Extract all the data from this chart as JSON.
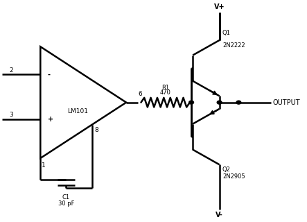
{
  "background_color": "#ffffff",
  "line_color": "#000000",
  "line_width": 1.8,
  "fig_width": 4.43,
  "fig_height": 3.2,
  "dpi": 100,
  "labels": {
    "pin2": "2",
    "pin3": "3",
    "pin1": "1",
    "pin6": "6",
    "pin8": "8",
    "opamp_name": "LM101",
    "minus": "-",
    "plus": "+",
    "r1_label": "R1",
    "r1_val": "470",
    "c1_label": "C1",
    "c1_val": "30 pF",
    "q1_label": "Q1",
    "q1_val": "2N2222",
    "q2_label": "Q2",
    "q2_val": "2N2905",
    "vplus": "V+",
    "vminus": "V-",
    "output": "OUTPUT"
  },
  "font_size": 7.0,
  "small_font_size": 6.0,
  "pin_font_size": 6.5
}
